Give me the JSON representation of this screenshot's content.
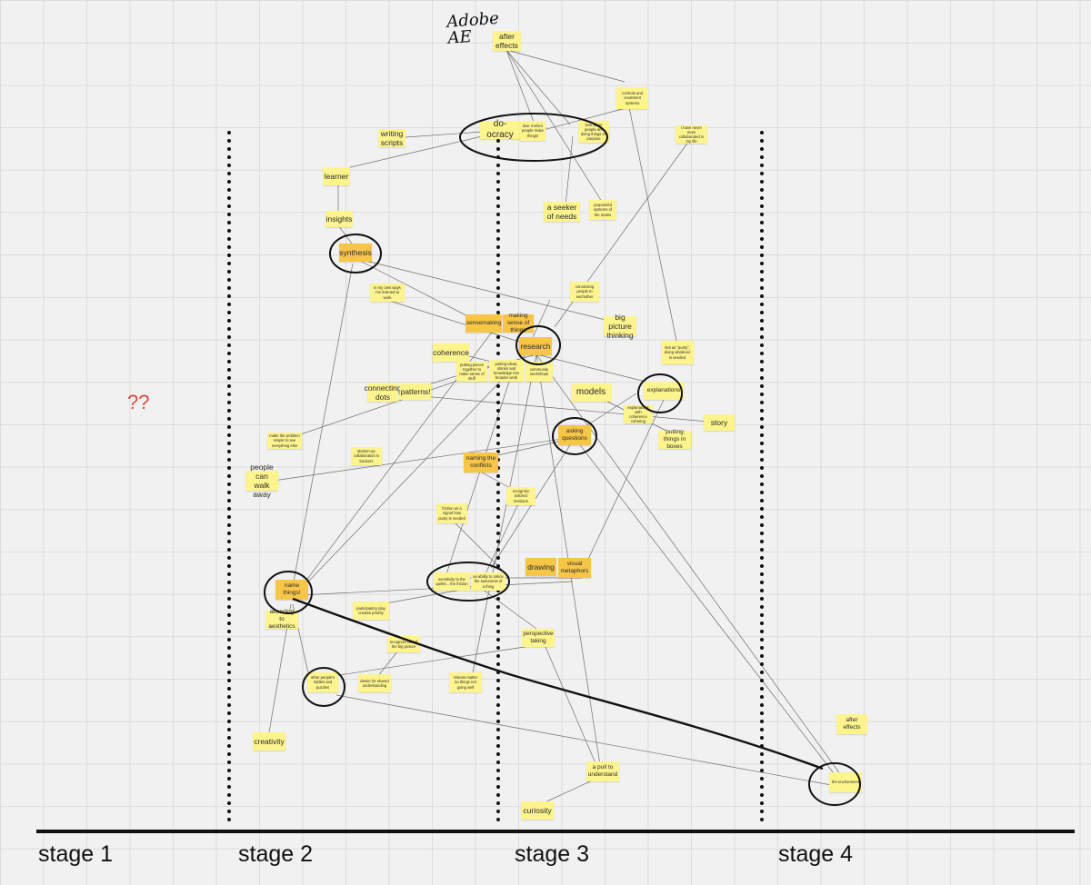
{
  "question_marks": "??",
  "handwritten_note": "Adobe AE",
  "stages": [
    "stage 1",
    "stage 2",
    "stage 3",
    "stage 4"
  ],
  "notes": {
    "after_effects_top": "after effects",
    "controls_systems": "controls and creatment systems",
    "do_ocracy": "do-ocracy",
    "love_it_when": "love it when people make things!",
    "love_people_doing": "love when people are doing things on purpose",
    "have_never_collaborated": "I have never more collaborated in my life",
    "writing_scripts": "writing scripts",
    "learner": "learner",
    "insights": "insights",
    "a_seeker_of_needs": "a seeker of needs",
    "purposeful_systems": "purposeful systems of the matrix",
    "synthesis": "synthesis",
    "in_my_own_ways": "in my own ways I've learned to work",
    "connecting_people": "connecting people to eachother",
    "sensemaking": "sensemaking",
    "making_sense": "making sense of things",
    "big_picture": "big picture thinking",
    "coherence": "coherence",
    "research": "research",
    "not_a_purity": "Not as \"purity\", doing whatever is needed",
    "putting_pieces": "putting pieces together to make sense of stuff",
    "putting_ideas": "putting ideas, stories and knowledge into broader work",
    "community_workshops": "community workshops",
    "connecting_dots": "connecting dots",
    "patterns": "patterns!",
    "models": "models",
    "explanations": "explanations",
    "story": "story",
    "explanations_coherence": "explanations with coherence cohering",
    "asking_questions": "asking questions",
    "putting_things": "putting things in boxes",
    "make_the_problem": "make the problem simple to see everything else",
    "bottom_up": "Bottom-up collaboration is bonkers",
    "naming_conflicts": "naming the conflicts",
    "people_walk_away": "people can walk away",
    "recognize_tensions": "recognize tailored tensions",
    "friction": "friction as a signal how purity is needed",
    "drawing": "drawing",
    "visual_metaphors": "visual metaphors",
    "name_things": "name things!",
    "sensitivity_quirks": "sensitivity to the quirks... the friction",
    "an_ability": "an ability to notice the sameness of a thing",
    "attending_aesthetics": "attending to aesthetics",
    "participatory_play": "participatory play creates priority",
    "perspective_taking": "perspective taking",
    "recognize_bits": "recognize bits of the big picture",
    "other_peoples": "other people's riddles and puzzles",
    "desire_shared": "desire for shared understanding",
    "visions_matter": "Visions matter so things not going well",
    "creativity": "creativity",
    "after_effects_right": "after effects",
    "a_pull": "a pull to understand",
    "the_environment": "the environment",
    "curiosity": "curiosity"
  },
  "colors": {
    "note_yellow": "#fdf48e",
    "note_orange": "#f7c647",
    "accent_red": "#e0493b"
  }
}
